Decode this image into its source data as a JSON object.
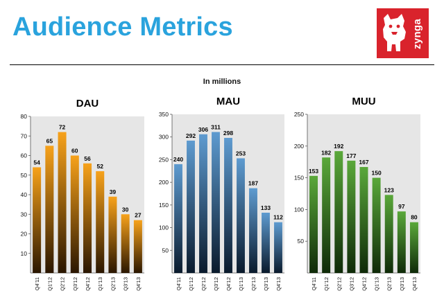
{
  "header": {
    "title": "Audience Metrics",
    "logo_text": "zynga",
    "subtitle": "In millions"
  },
  "colors": {
    "title": "#2aa3dd",
    "logo_bg": "#d9232c",
    "plot_bg": "#e6e6e6"
  },
  "chart_data": [
    {
      "type": "bar",
      "title": "DAU",
      "categories": [
        "Q4'11",
        "Q1'12",
        "Q2'12",
        "Q3'12",
        "Q4'12",
        "Q1'13",
        "Q2'13",
        "Q3'13",
        "Q4'13"
      ],
      "values": [
        54,
        65,
        72,
        60,
        56,
        52,
        39,
        30,
        27
      ],
      "ylim": [
        0,
        80
      ],
      "yticks": [
        10,
        20,
        30,
        40,
        50,
        60,
        70,
        80
      ],
      "bar_gradient": [
        "#f7a21b",
        "#2a1600"
      ],
      "grid": false
    },
    {
      "type": "bar",
      "title": "MAU",
      "categories": [
        "Q4'11",
        "Q1'12",
        "Q2'12",
        "Q3'12",
        "Q4'12",
        "Q1'13",
        "Q2'13",
        "Q3'13",
        "Q4'13"
      ],
      "values": [
        240,
        292,
        306,
        311,
        298,
        253,
        187,
        133,
        112
      ],
      "ylim": [
        0,
        350
      ],
      "yticks": [
        50,
        100,
        150,
        200,
        250,
        300,
        350
      ],
      "bar_gradient": [
        "#5e9bd0",
        "#0a1a2c"
      ],
      "grid": false
    },
    {
      "type": "bar",
      "title": "MUU",
      "categories": [
        "Q4'11",
        "Q1'12",
        "Q2'12",
        "Q3'12",
        "Q4'12",
        "Q1'13",
        "Q2'13",
        "Q3'13",
        "Q4'13"
      ],
      "values": [
        153,
        182,
        192,
        177,
        167,
        150,
        123,
        97,
        80
      ],
      "ylim": [
        0,
        250
      ],
      "yticks": [
        50,
        100,
        150,
        200,
        250
      ],
      "bar_gradient": [
        "#5aa83a",
        "#0f2a08"
      ],
      "grid": false
    }
  ]
}
